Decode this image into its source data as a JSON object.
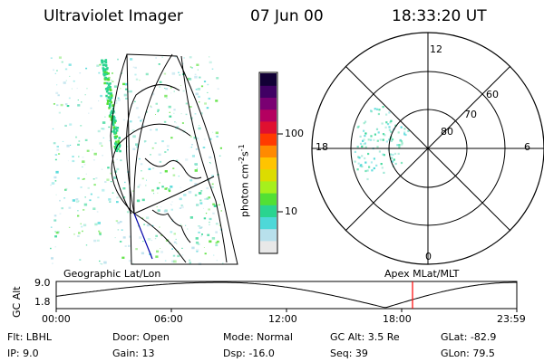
{
  "header": {
    "instrument": "Ultraviolet Imager",
    "date": "07 Jun 00",
    "time": "18:33:20 UT"
  },
  "colorbar": {
    "unit_main": "photon cm",
    "unit_sup1": "-2",
    "unit_mid": "s",
    "unit_sup2": "-1",
    "ticks": [
      "100",
      "10"
    ],
    "tick_values": [
      100,
      10
    ],
    "colors": [
      "#e8e8e8",
      "#b8e0ec",
      "#4ed8d8",
      "#2ad490",
      "#52e034",
      "#a6f01c",
      "#dcdc00",
      "#ffc400",
      "#ff8a00",
      "#ff3a00",
      "#e01030",
      "#b40060",
      "#7a0072",
      "#400064",
      "#120036"
    ]
  },
  "polar": {
    "lat_labels": [
      "80",
      "70",
      "60"
    ],
    "mlt_labels": {
      "top": "12",
      "left": "18",
      "right": "6",
      "bottom": "0"
    }
  },
  "timeline": {
    "left_title": "Geographic Lat/Lon",
    "right_title": "Apex MLat/MLT",
    "axis_title": "GC Alt",
    "y_ticks": [
      "9.0",
      "1.8"
    ],
    "x_ticks": [
      "00:00",
      "06:00",
      "12:00",
      "18:00",
      "23:59"
    ],
    "marker_color": "#ff0000"
  },
  "info": {
    "row1": {
      "flt": "Flt: LBHL",
      "door": "Door: Open",
      "mode": "Mode: Normal",
      "gcalt": "GC Alt: 3.5 Re",
      "glat": "GLat: -82.9"
    },
    "row2": {
      "ip": "IP: 9.0",
      "gain": "Gain: 13",
      "dsp": "Dsp: -16.0",
      "seq": "Seq: 39",
      "glon": "GLon: 79.5"
    }
  }
}
